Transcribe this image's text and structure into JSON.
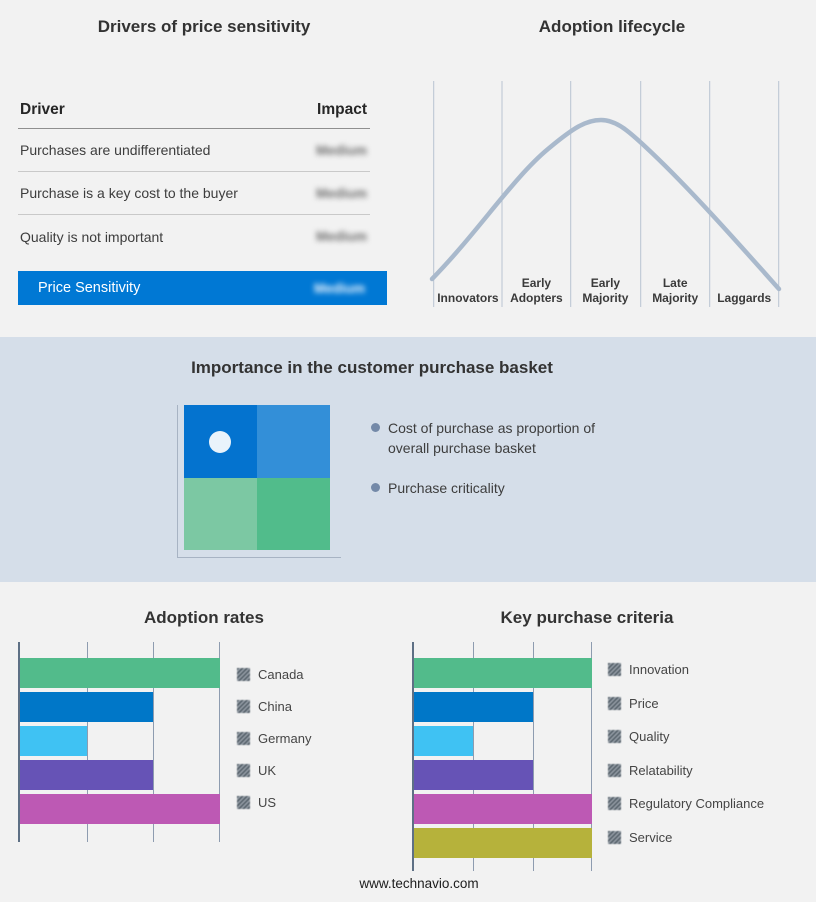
{
  "page": {
    "background": "#f2f2f2",
    "band_background": "#d5dee9",
    "footer": "www.technavio.com"
  },
  "drivers_panel": {
    "title": "Drivers of price sensitivity",
    "table": {
      "col_driver": "Driver",
      "col_impact": "Impact",
      "rows": [
        {
          "driver": "Purchases are undifferentiated",
          "impact": "Medium",
          "impact_blurred": true
        },
        {
          "driver": "Purchase is a key cost to the buyer",
          "impact": "Medium",
          "impact_blurred": true
        },
        {
          "driver": "Quality is not important",
          "impact": "Medium",
          "impact_blurred": true
        }
      ],
      "summary": {
        "label": "Price Sensitivity",
        "impact": "Medium",
        "impact_blurred": true,
        "bar_color": "#0078d4"
      }
    }
  },
  "lifecycle_panel": {
    "title": "Adoption lifecycle",
    "stages": [
      "Innovators",
      "Early Adopters",
      "Early Majority",
      "Late Majority",
      "Laggards"
    ],
    "stage_lines": [
      [
        "Innovators"
      ],
      [
        "Early",
        "Adopters"
      ],
      [
        "Early",
        "Majority"
      ],
      [
        "Late",
        "Majority"
      ],
      [
        "Laggards"
      ]
    ],
    "curve_color": "#a9b9cc",
    "gridline_color": "#b9c4d2"
  },
  "basket_band": {
    "title": "Importance in the customer purchase basket",
    "bullets": [
      "Cost of purchase as proportion of overall purchase basket",
      "Purchase criticality"
    ],
    "bullet_dot_color": "#7489a8",
    "quadrant_colors": {
      "top_left": "#0473cf",
      "top_right": "#338fd8",
      "bottom_left": "#7cc8a3",
      "bottom_right": "#51bc8b"
    },
    "dot_color": "#e9f3fb",
    "axis_color": "#a7b3c3"
  },
  "chart_data": [
    {
      "type": "line",
      "title": "Adoption lifecycle",
      "x_categories": [
        "Innovators",
        "Early Adopters",
        "Early Majority",
        "Late Majority",
        "Laggards"
      ],
      "shape": "bell curve rising from Innovators, peaking in Early Majority, falling through Laggards",
      "line_color": "#a9b9cc",
      "grid": "vertical category separators only"
    },
    {
      "type": "bar",
      "orientation": "horizontal",
      "title": "Adoption rates",
      "categories": [
        "Canada",
        "China",
        "Germany",
        "UK",
        "US"
      ],
      "values": [
        3,
        2,
        1,
        2,
        3
      ],
      "xlim": [
        0,
        3
      ],
      "gridlines": 3,
      "colors": [
        "#52bb8b",
        "#0077c8",
        "#3fc2f3",
        "#6653b6",
        "#bd59b4"
      ],
      "legend_position": "right"
    },
    {
      "type": "bar",
      "orientation": "horizontal",
      "title": "Key purchase criteria",
      "categories": [
        "Innovation",
        "Price",
        "Quality",
        "Relatability",
        "Regulatory Compliance",
        "Service"
      ],
      "values": [
        3,
        2,
        1,
        2,
        3,
        3
      ],
      "xlim": [
        0,
        3
      ],
      "gridlines": 3,
      "colors": [
        "#52bb8b",
        "#0077c8",
        "#3fc2f3",
        "#6653b6",
        "#bd59b4",
        "#b6b23b"
      ],
      "legend_position": "right"
    }
  ]
}
